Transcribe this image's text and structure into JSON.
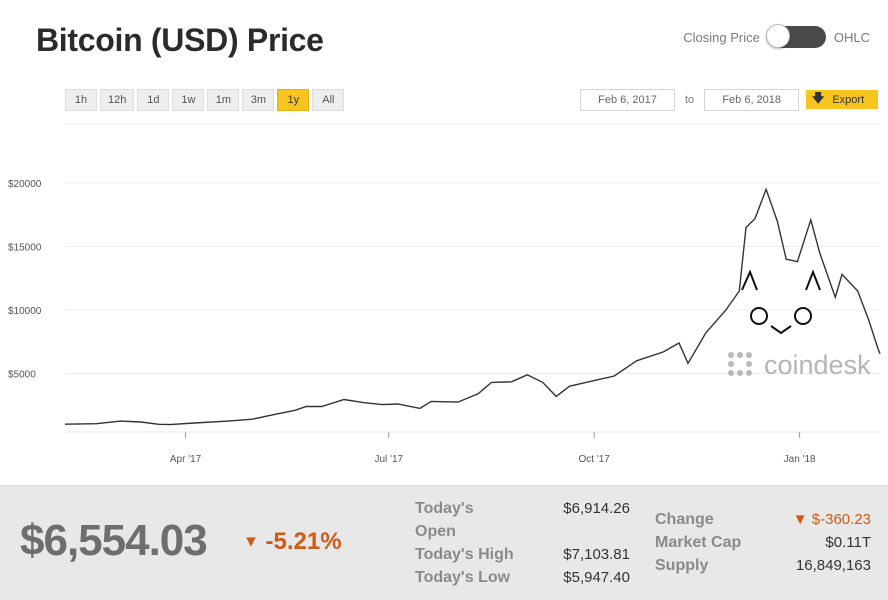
{
  "header": {
    "title": "Bitcoin (USD) Price"
  },
  "toggle": {
    "left_label": "Closing Price",
    "right_label": "OHLC"
  },
  "ranges": [
    "1h",
    "12h",
    "1d",
    "1w",
    "1m",
    "3m",
    "1y",
    "All"
  ],
  "active_range": "1y",
  "date_range": {
    "from": "Feb 6, 2017",
    "separator": "to",
    "to": "Feb 6, 2018"
  },
  "export": {
    "label": "Export",
    "icon": "download-arrow-icon"
  },
  "watermark": {
    "text": "coindesk"
  },
  "colors": {
    "accent": "#f7c51e",
    "negative": "#d05a16",
    "line": "#333333"
  },
  "chart_data": {
    "type": "line",
    "title": "",
    "xlabel": "",
    "ylabel": "",
    "x_ticks": [
      "Apr '17",
      "Jul '17",
      "Oct '17",
      "Jan '18"
    ],
    "x_tick_dates": [
      "2017-04-01",
      "2017-07-01",
      "2017-10-01",
      "2018-01-01"
    ],
    "y_ticks": [
      "$5000",
      "$10000",
      "$15000",
      "$20000"
    ],
    "y_tick_values": [
      5000,
      10000,
      15000,
      20000
    ],
    "ylim": [
      0,
      20000
    ],
    "xlim": [
      "2017-02-06",
      "2018-02-06"
    ],
    "grid": true,
    "series": [
      {
        "x": [
          "2017-02-06",
          "2017-02-20",
          "2017-03-03",
          "2017-03-12",
          "2017-03-20",
          "2017-03-25",
          "2017-04-05",
          "2017-04-20",
          "2017-05-01",
          "2017-05-10",
          "2017-05-20",
          "2017-05-25",
          "2017-06-01",
          "2017-06-11",
          "2017-06-20",
          "2017-06-28",
          "2017-07-05",
          "2017-07-15",
          "2017-07-20",
          "2017-08-01",
          "2017-08-10",
          "2017-08-16",
          "2017-08-25",
          "2017-09-01",
          "2017-09-08",
          "2017-09-14",
          "2017-09-20",
          "2017-09-30",
          "2017-10-10",
          "2017-10-20",
          "2017-11-01",
          "2017-11-08",
          "2017-11-12",
          "2017-11-20",
          "2017-11-29",
          "2017-12-05",
          "2017-12-08",
          "2017-12-12",
          "2017-12-17",
          "2017-12-22",
          "2017-12-26",
          "2017-12-31",
          "2018-01-06",
          "2018-01-10",
          "2018-01-17",
          "2018-01-20",
          "2018-01-27",
          "2018-02-01",
          "2018-02-05",
          "2018-02-06"
        ],
        "values": [
          1010,
          1050,
          1250,
          1180,
          1000,
          980,
          1100,
          1250,
          1400,
          1750,
          2100,
          2400,
          2400,
          2950,
          2700,
          2550,
          2600,
          2250,
          2800,
          2750,
          3400,
          4300,
          4350,
          4900,
          4300,
          3200,
          4000,
          4400,
          4800,
          6000,
          6700,
          7400,
          5800,
          8200,
          10000,
          11500,
          16500,
          17200,
          19500,
          17000,
          14000,
          13800,
          17100,
          14500,
          11000,
          12800,
          11500,
          9200,
          7000,
          6554
        ]
      }
    ]
  },
  "summary": {
    "price": "$6,554.03",
    "change_pct": "-5.21%",
    "down_arrow": "▼",
    "open_label_1": "Today's",
    "open_label_2": "Open",
    "open_value": "$6,914.26",
    "high_label": "Today's High",
    "high_value": "$7,103.81",
    "low_label": "Today's Low",
    "low_value": "$5,947.40",
    "change_label": "Change",
    "change_value": "-360.23",
    "change_arrow": "▼ $",
    "market_cap_label": "Market Cap",
    "market_cap_value": "$0.11T",
    "supply_label": "Supply",
    "supply_value": "16,849,163"
  }
}
